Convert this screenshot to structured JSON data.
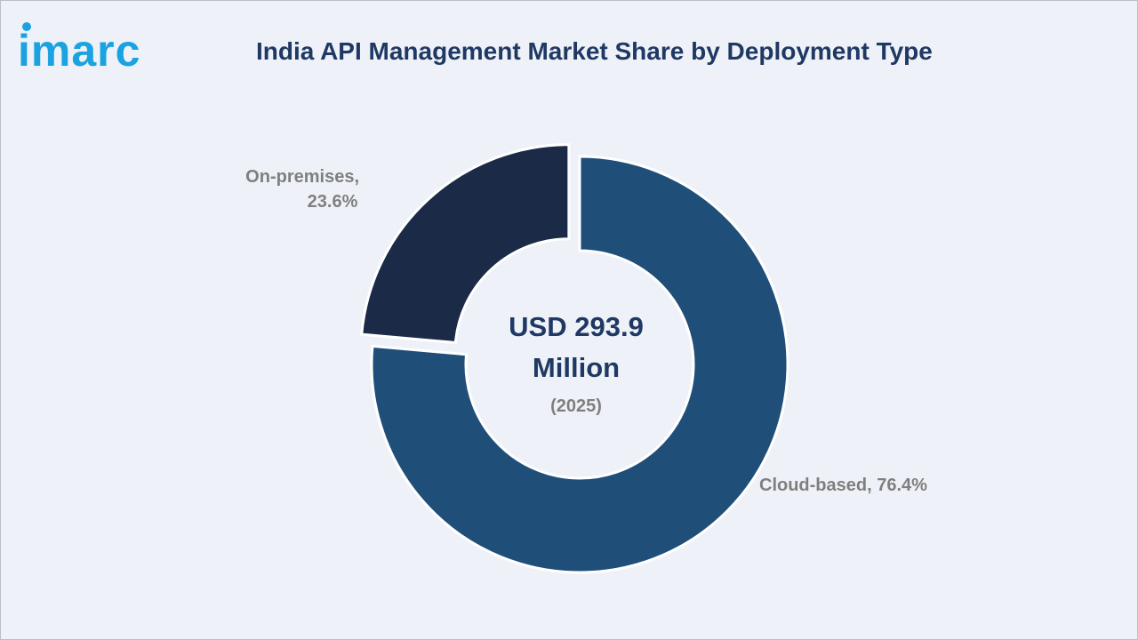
{
  "brand": {
    "logo_text": "imarc",
    "logo_color": "#1aa3e0"
  },
  "title": "India API Management Market Share by Deployment Type",
  "center": {
    "value_line1": "USD 293.9",
    "value_line2": "Million",
    "year": "(2025)"
  },
  "chart_data": {
    "type": "pie",
    "variant": "donut",
    "title": "India API Management Market Share by Deployment Type",
    "categories": [
      "Cloud-based",
      "On-premises"
    ],
    "values": [
      76.4,
      23.6
    ],
    "unit": "%",
    "labels": [
      "Cloud-based, 76.4%",
      "On-premises,\n23.6%"
    ],
    "colors": [
      "#1f4e79",
      "#1b2a47"
    ],
    "exploded": "On-premises",
    "legend": "none"
  }
}
